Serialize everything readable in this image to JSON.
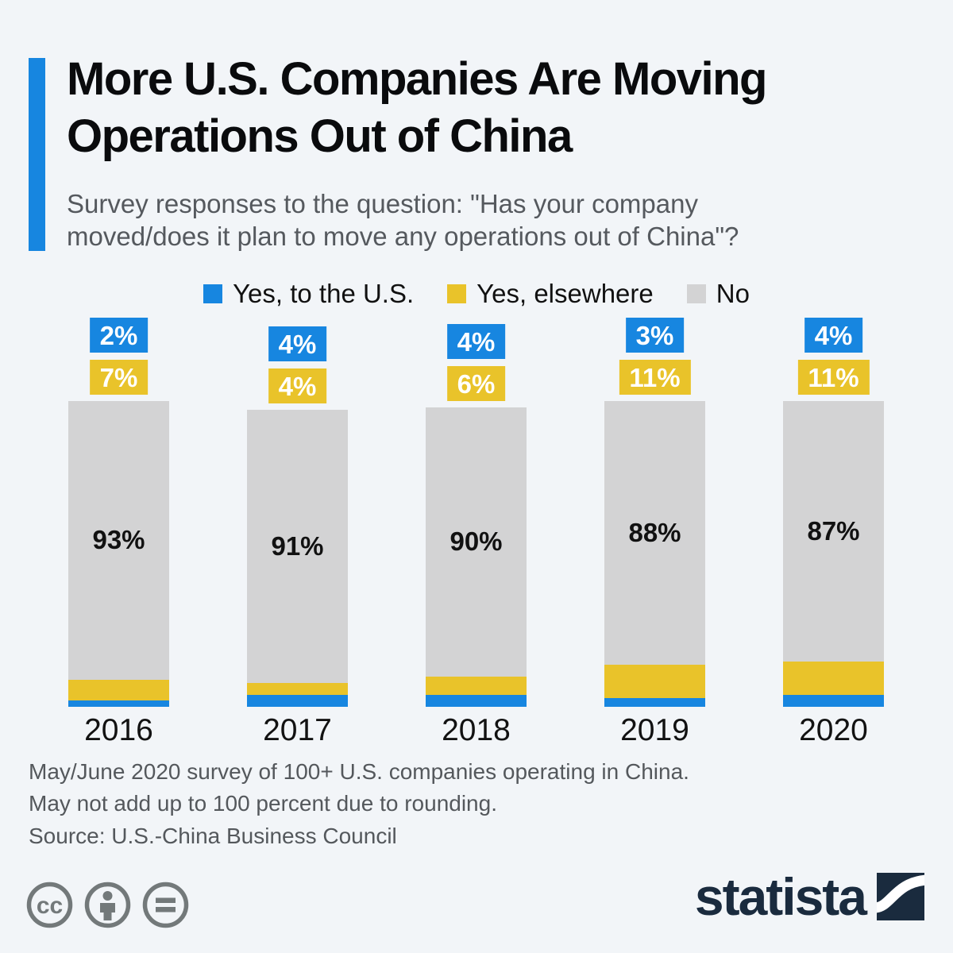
{
  "title": {
    "line1": "More U.S. Companies Are Moving",
    "line2": "Operations Out of China"
  },
  "subtitle": {
    "line1": "Survey responses to the question: \"Has your company",
    "line2": "moved/does it plan to move any operations out of China\"?"
  },
  "legend": [
    {
      "label": "Yes, to the U.S.",
      "color": "#1786e0"
    },
    {
      "label": "Yes, elsewhere",
      "color": "#e9c32a"
    },
    {
      "label": "No",
      "color": "#d3d3d4"
    }
  ],
  "chart_data": {
    "type": "bar",
    "stacked": true,
    "categories": [
      "2016",
      "2017",
      "2018",
      "2019",
      "2020"
    ],
    "series": [
      {
        "name": "Yes, to the U.S.",
        "color": "#1786e0",
        "values": [
          2,
          4,
          4,
          3,
          4
        ]
      },
      {
        "name": "Yes, elsewhere",
        "color": "#e9c32a",
        "values": [
          7,
          4,
          6,
          11,
          11
        ]
      },
      {
        "name": "No",
        "color": "#d3d3d4",
        "values": [
          93,
          91,
          90,
          88,
          87
        ]
      }
    ],
    "value_suffix": "%",
    "title": "More U.S. Companies Are Moving Operations Out of China",
    "xlabel": "",
    "ylabel": "",
    "ylim": [
      0,
      102
    ],
    "grid": false,
    "legend_position": "top"
  },
  "footnote": {
    "line1": "May/June 2020 survey of 100+ U.S. companies operating in China.",
    "line2": "May not add up to 100 percent due to rounding.",
    "source": "Source: U.S.-China Business Council"
  },
  "branding": {
    "logo_text": "statista"
  },
  "colors": {
    "background": "#f2f5f8",
    "accent_blue": "#1786e0",
    "yellow": "#e9c32a",
    "bar_gray": "#d3d3d4",
    "title_text": "#0a0b0d",
    "subtitle_text": "#55595e",
    "footnote_text": "#54585c",
    "cc_icon_gray": "#73797a",
    "brand_navy": "#1a2b3e"
  }
}
